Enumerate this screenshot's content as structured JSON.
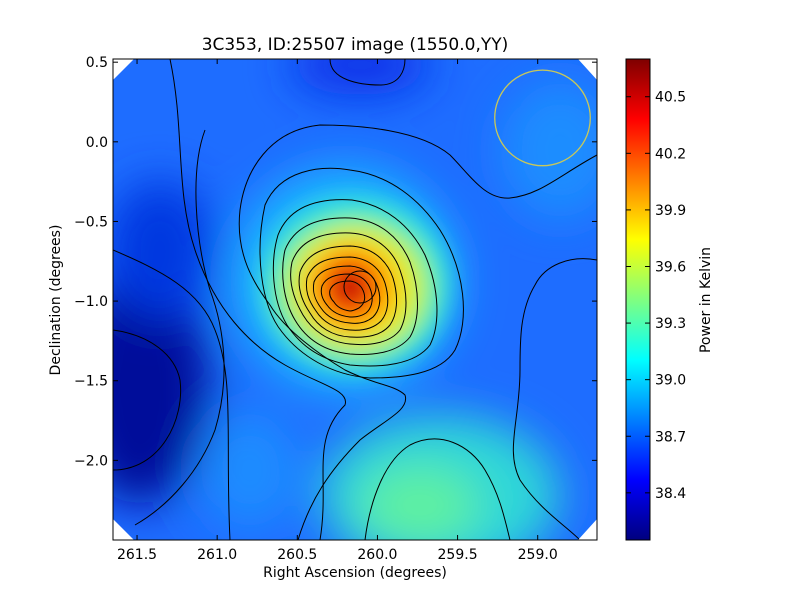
{
  "chart_data": {
    "type": "heatmap",
    "title": "3C353, ID:25507 image (1550.0,YY)",
    "xlabel": "Right Ascension (degrees)",
    "ylabel": "Declination (degrees)",
    "colorbar_label": "Power in Kelvin",
    "xlim": [
      261.65,
      258.63
    ],
    "ylim": [
      -2.5,
      0.52
    ],
    "x_ticks": [
      261.5,
      261.0,
      260.5,
      260.0,
      259.5,
      259.0
    ],
    "x_tick_labels": [
      "261.5",
      "261.0",
      "260.5",
      "260.0",
      "259.5",
      "259.0"
    ],
    "y_ticks": [
      0.5,
      0.0,
      -0.5,
      -1.0,
      -1.5,
      -2.0
    ],
    "y_tick_labels": [
      "0.5",
      "0.0",
      "−0.5",
      "−1.0",
      "−1.5",
      "−2.0"
    ],
    "colorbar_range": [
      38.15,
      40.7
    ],
    "colorbar_ticks": [
      38.4,
      38.7,
      39.0,
      39.3,
      39.6,
      39.9,
      40.2,
      40.5
    ],
    "colorbar_tick_labels": [
      "38.4",
      "38.7",
      "39.0",
      "39.3",
      "39.6",
      "39.9",
      "40.2",
      "40.5"
    ],
    "colormap": "jet",
    "peak": {
      "ra": 260.07,
      "dec": -0.9,
      "value": 40.68
    },
    "secondary_features": [
      {
        "ra": 259.85,
        "dec": -2.3,
        "value": 39.5,
        "kind": "local maximum"
      },
      {
        "ra": 261.55,
        "dec": -1.45,
        "value": 38.2,
        "kind": "local minimum"
      },
      {
        "ra": 259.95,
        "dec": 0.55,
        "value": 38.45,
        "kind": "local minimum"
      }
    ],
    "contours": "black iso-lines",
    "beam_circle": {
      "ra": 258.97,
      "dec": 0.15,
      "radius_deg": 0.3,
      "color": "#c8c85a"
    },
    "grid": false,
    "legend": "colorbar at right"
  }
}
